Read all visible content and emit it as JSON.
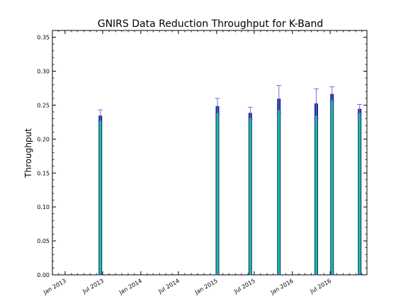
{
  "chart_data": {
    "type": "bar",
    "title": "GNIRS Data Reduction Throughput for K-Band",
    "xlabel": "",
    "ylabel": "Throughput",
    "ylim": [
      0,
      0.36
    ],
    "xlim": [
      "2012-11-01",
      "2016-12-25"
    ],
    "grid": false,
    "legend": "none",
    "y_ticks": [
      "0.00",
      "0.05",
      "0.10",
      "0.15",
      "0.20",
      "0.25",
      "0.30",
      "0.35"
    ],
    "x_ticks": [
      {
        "date": "2013-01-01",
        "label": "Jan 2013"
      },
      {
        "date": "2013-07-01",
        "label": "Jul 2013"
      },
      {
        "date": "2014-01-01",
        "label": "Jan 2014"
      },
      {
        "date": "2014-07-01",
        "label": "Jul 2014"
      },
      {
        "date": "2015-01-01",
        "label": "Jan 2015"
      },
      {
        "date": "2015-07-01",
        "label": "Jul 2015"
      },
      {
        "date": "2016-01-01",
        "label": "Jan 2016"
      },
      {
        "date": "2016-07-01",
        "label": "Jul 2016"
      }
    ],
    "series": [
      {
        "x": [
          "2013-06-20",
          "2015-01-05",
          "2015-06-12",
          "2015-10-28",
          "2016-04-25",
          "2016-07-10",
          "2016-11-20"
        ],
        "values": [
          0.234,
          0.248,
          0.238,
          0.259,
          0.252,
          0.266,
          0.244
        ],
        "error": [
          0.009,
          0.012,
          0.009,
          0.02,
          0.022,
          0.011,
          0.007
        ]
      }
    ],
    "colors": {
      "bar_fill": "#1fbf9a",
      "bar_edge": "#0c2a7a",
      "bar_top": "#1e2f95",
      "errorbar": "#7070dd"
    }
  }
}
